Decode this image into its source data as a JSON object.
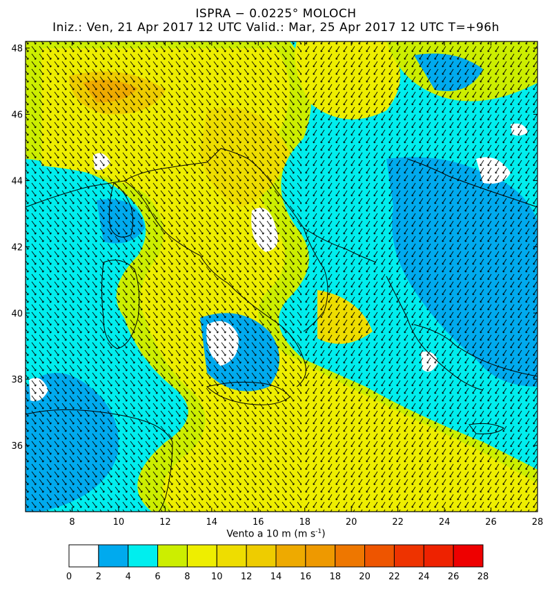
{
  "header": {
    "title": "ISPRA − 0.0225° MOLOCH",
    "subtitle": "Iniz.: Ven, 21 Apr 2017  12 UTC  Valid.: Mar, 25 Apr 2017  12 UTC  T=+96h"
  },
  "axes": {
    "lat_ticks": [
      "48",
      "46",
      "44",
      "42",
      "40",
      "38",
      "36"
    ],
    "lon_ticks": [
      "8",
      "10",
      "12",
      "14",
      "16",
      "18",
      "20",
      "22",
      "24",
      "26",
      "28"
    ],
    "lat_range": [
      34,
      48.2
    ],
    "lon_range": [
      6,
      28
    ]
  },
  "legend": {
    "label_prefix": "Vento a 10 m (m s",
    "label_sup": "-1",
    "label_suffix": ")",
    "bins": [
      {
        "from": "0",
        "color": "#ffffff"
      },
      {
        "from": "2",
        "color": "#00aaee"
      },
      {
        "from": "4",
        "color": "#00eeee"
      },
      {
        "from": "6",
        "color": "#ccee00"
      },
      {
        "from": "8",
        "color": "#eeee00"
      },
      {
        "from": "10",
        "color": "#eedd00"
      },
      {
        "from": "12",
        "color": "#eecc00"
      },
      {
        "from": "14",
        "color": "#eeaa00"
      },
      {
        "from": "16",
        "color": "#ee9900"
      },
      {
        "from": "18",
        "color": "#ee7700"
      },
      {
        "from": "20",
        "color": "#ee5500"
      },
      {
        "from": "22",
        "color": "#ee3300"
      },
      {
        "from": "24",
        "color": "#ee2200"
      },
      {
        "from": "26",
        "color": "#ee0000"
      }
    ],
    "last_tick": "28"
  },
  "colors": {
    "calm": "#ffffff",
    "blue": "#00aaee",
    "cyan": "#00eeee",
    "yellowgreen": "#ccee00",
    "yellow": "#eeee00",
    "orange": "#eeaa00"
  }
}
